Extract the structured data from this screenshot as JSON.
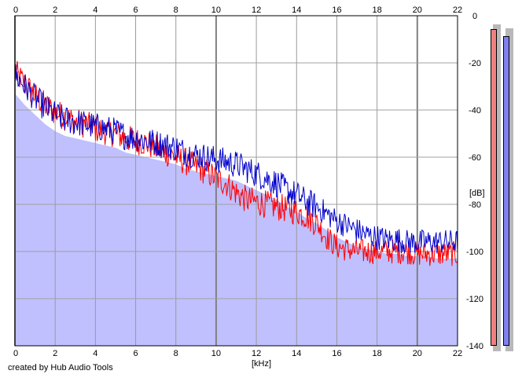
{
  "chart_data": {
    "type": "line",
    "title": "",
    "xlabel": "[kHz]",
    "ylabel": "[dB]",
    "xlim": [
      0,
      22
    ],
    "ylim": [
      -140,
      0
    ],
    "x_ticks": [
      "0",
      "2",
      "4",
      "6",
      "8",
      "10",
      "12",
      "14",
      "16",
      "18",
      "20",
      "22"
    ],
    "y_ticks": [
      "0",
      "-20",
      "-40",
      "-60",
      "-80",
      "-100",
      "-120",
      "-140"
    ],
    "grid": true,
    "series": [
      {
        "color": "#ff0000",
        "style": "line",
        "x": [
          0,
          0.5,
          1,
          1.5,
          2,
          2.5,
          3,
          3.5,
          4,
          4.5,
          5,
          5.5,
          6,
          6.5,
          7,
          7.5,
          8,
          8.5,
          9,
          9.5,
          10,
          10.5,
          11,
          11.5,
          12,
          12.5,
          13,
          13.5,
          14,
          14.5,
          15,
          15.5,
          16,
          16.5,
          17,
          17.5,
          18,
          18.5,
          19,
          19.5,
          20,
          20.5,
          21,
          21.5,
          22
        ],
        "y": [
          -24,
          -29,
          -34,
          -38,
          -41,
          -43,
          -45,
          -46,
          -48,
          -49,
          -50,
          -52,
          -53,
          -54,
          -56,
          -58,
          -60,
          -62,
          -64,
          -66,
          -69,
          -71,
          -75,
          -78,
          -79,
          -80,
          -81,
          -82,
          -83,
          -85,
          -88,
          -94,
          -98,
          -99,
          -100,
          -100,
          -100,
          -100,
          -100,
          -100,
          -101,
          -101,
          -101,
          -101,
          -101
        ]
      },
      {
        "color": "#0000cc",
        "style": "line",
        "x": [
          0,
          0.5,
          1,
          1.5,
          2,
          2.5,
          3,
          3.5,
          4,
          4.5,
          5,
          5.5,
          6,
          6.5,
          7,
          7.5,
          8,
          8.5,
          9,
          9.5,
          10,
          10.5,
          11,
          11.5,
          12,
          12.5,
          13,
          13.5,
          14,
          14.5,
          15,
          15.5,
          16,
          16.5,
          17,
          17.5,
          18,
          18.5,
          19,
          19.5,
          20,
          20.5,
          21,
          21.5,
          22
        ],
        "y": [
          -25,
          -30,
          -35,
          -39,
          -42,
          -44,
          -45,
          -46,
          -47,
          -48,
          -49,
          -51,
          -52,
          -53,
          -54,
          -55,
          -56,
          -58,
          -59,
          -60,
          -61,
          -62,
          -63,
          -65,
          -67,
          -69,
          -71,
          -74,
          -76,
          -79,
          -81,
          -84,
          -87,
          -89,
          -91,
          -93,
          -94,
          -95,
          -95,
          -96,
          -96,
          -96,
          -96,
          -96,
          -96
        ]
      },
      {
        "color": "#c0c0ff",
        "style": "area",
        "x": [
          0,
          0.5,
          1,
          1.5,
          2,
          2.5,
          3,
          3.5,
          4,
          4.5,
          5,
          5.5,
          6,
          6.5,
          7,
          7.5,
          8,
          8.5,
          9,
          9.5,
          10,
          10.5,
          11,
          11.5,
          12,
          12.5,
          13,
          13.5,
          14,
          14.5,
          15,
          15.5,
          16,
          16.5,
          17,
          17.5,
          18,
          18.5,
          19,
          19.5,
          20,
          20.5,
          21,
          21.5,
          22
        ],
        "y": [
          -33,
          -38,
          -42,
          -46,
          -49,
          -51,
          -52,
          -53,
          -54,
          -55,
          -56,
          -58,
          -59,
          -60,
          -61,
          -62,
          -63,
          -65,
          -66,
          -67,
          -68,
          -69,
          -70,
          -72,
          -74,
          -76,
          -78,
          -81,
          -83,
          -86,
          -88,
          -91,
          -94,
          -96,
          -98,
          -99,
          -100,
          -101,
          -101,
          -102,
          -102,
          -102,
          -103,
          -103,
          -103
        ]
      }
    ],
    "meters": [
      {
        "color": "#f08080",
        "level": 0.975
      },
      {
        "color": "#8080ee",
        "level": 0.955
      }
    ]
  },
  "footer": {
    "credit": "created by Hub Audio Tools"
  }
}
